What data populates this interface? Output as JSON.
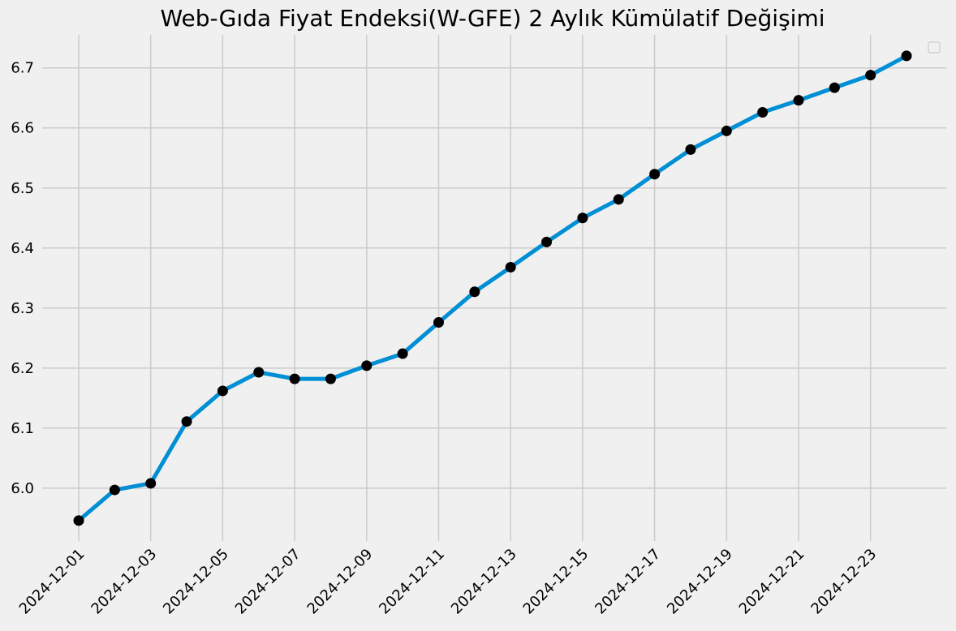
{
  "chart_data": {
    "type": "line",
    "title": "Web-Gıda Fiyat Endeksi(W-GFE) 2 Aylık Kümülatif Değişimi",
    "xlabel": "",
    "ylabel": "",
    "x": [
      "2024-12-01",
      "2024-12-02",
      "2024-12-03",
      "2024-12-04",
      "2024-12-05",
      "2024-12-06",
      "2024-12-07",
      "2024-12-08",
      "2024-12-09",
      "2024-12-10",
      "2024-12-11",
      "2024-12-12",
      "2024-12-13",
      "2024-12-14",
      "2024-12-15",
      "2024-12-16",
      "2024-12-17",
      "2024-12-18",
      "2024-12-19",
      "2024-12-20",
      "2024-12-21",
      "2024-12-22",
      "2024-12-23",
      "2024-12-24"
    ],
    "series": [
      {
        "values": [
          5.946,
          5.997,
          6.008,
          6.111,
          6.162,
          6.193,
          6.182,
          6.182,
          6.204,
          6.224,
          6.276,
          6.327,
          6.368,
          6.41,
          6.45,
          6.481,
          6.523,
          6.564,
          6.595,
          6.626,
          6.646,
          6.667,
          6.688,
          6.72
        ]
      }
    ],
    "x_tick_labels": [
      "2024-12-01",
      "2024-12-03",
      "2024-12-05",
      "2024-12-07",
      "2024-12-09",
      "2024-12-11",
      "2024-12-13",
      "2024-12-15",
      "2024-12-17",
      "2024-12-19",
      "2024-12-21",
      "2024-12-23"
    ],
    "y_ticks": [
      "6.0",
      "6.1",
      "6.2",
      "6.3",
      "6.4",
      "6.5",
      "6.6",
      "6.7"
    ],
    "ylim": [
      5.912,
      6.755
    ],
    "grid": true,
    "legend": "top-right",
    "colors": {
      "line": "#008fd5",
      "marker": "#000000",
      "background": "#f0f0f0",
      "grid": "#cbcbcb"
    }
  }
}
